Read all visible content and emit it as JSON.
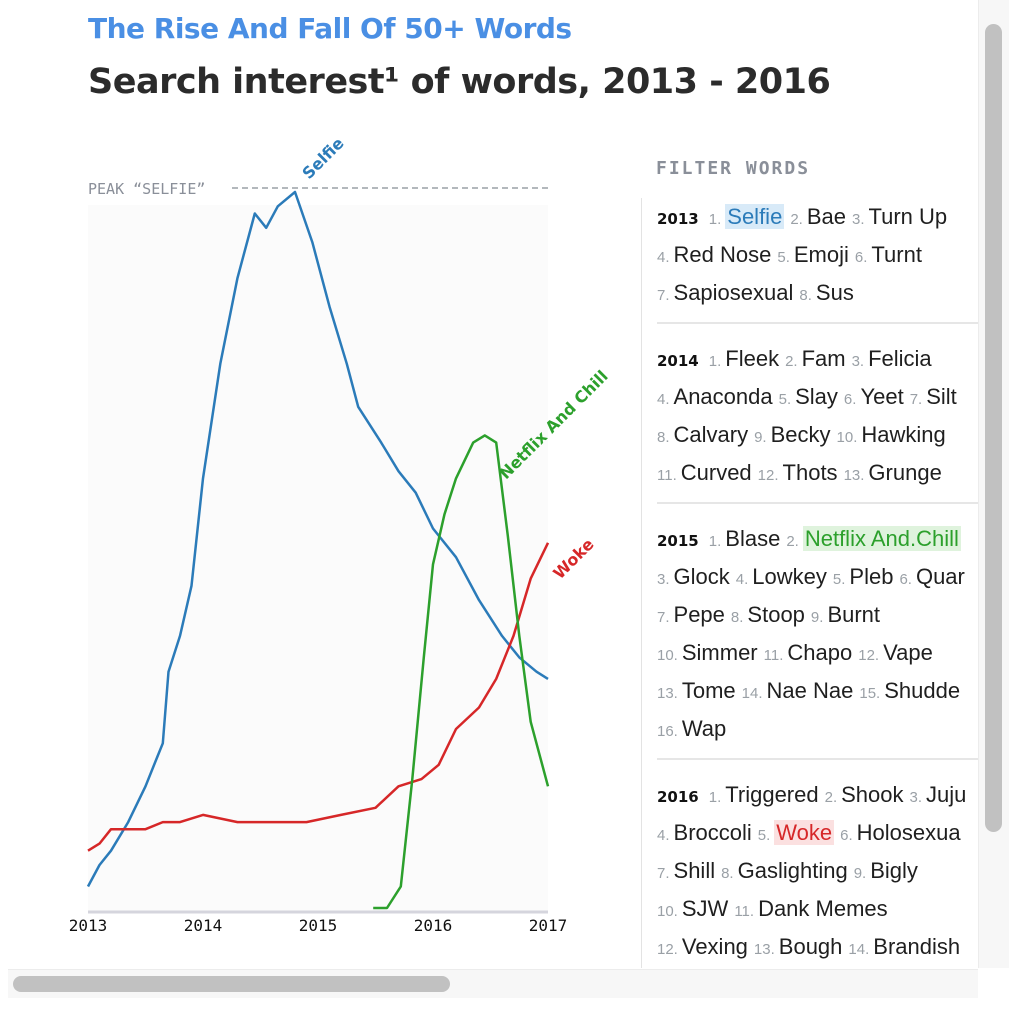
{
  "header": {
    "kicker": "The Rise And Fall Of 50+ Words",
    "title": "Search interest¹ of words, 2013 - 2016"
  },
  "chart_data": {
    "type": "line",
    "title": "Search interest¹ of words, 2013 - 2016",
    "xlabel": "",
    "ylabel": "",
    "xlim": [
      2013,
      2017
    ],
    "ylim": [
      0,
      100
    ],
    "x_ticks": [
      "2013",
      "2014",
      "2015",
      "2016",
      "2017"
    ],
    "annotations": [
      {
        "text": "PEAK “SELFIE”",
        "type": "reference-line",
        "y": 100
      }
    ],
    "series": [
      {
        "name": "Selfie",
        "color": "#2b7bb9",
        "points": [
          [
            2013.0,
            3
          ],
          [
            2013.1,
            6
          ],
          [
            2013.2,
            8
          ],
          [
            2013.35,
            12
          ],
          [
            2013.5,
            17
          ],
          [
            2013.6,
            21
          ],
          [
            2013.65,
            23
          ],
          [
            2013.7,
            33
          ],
          [
            2013.8,
            38
          ],
          [
            2013.9,
            45
          ],
          [
            2014.0,
            60
          ],
          [
            2014.15,
            76
          ],
          [
            2014.3,
            88
          ],
          [
            2014.45,
            97
          ],
          [
            2014.55,
            95
          ],
          [
            2014.65,
            98
          ],
          [
            2014.8,
            100
          ],
          [
            2014.95,
            93
          ],
          [
            2015.1,
            84
          ],
          [
            2015.25,
            76
          ],
          [
            2015.35,
            70
          ],
          [
            2015.55,
            65
          ],
          [
            2015.7,
            61
          ],
          [
            2015.85,
            58
          ],
          [
            2016.0,
            53
          ],
          [
            2016.2,
            49
          ],
          [
            2016.4,
            43
          ],
          [
            2016.6,
            38
          ],
          [
            2016.75,
            35
          ],
          [
            2016.9,
            33
          ],
          [
            2017.0,
            32
          ]
        ]
      },
      {
        "name": "Woke",
        "color": "#d62728",
        "points": [
          [
            2013.0,
            8
          ],
          [
            2013.1,
            9
          ],
          [
            2013.2,
            11
          ],
          [
            2013.35,
            11
          ],
          [
            2013.5,
            11
          ],
          [
            2013.65,
            12
          ],
          [
            2013.8,
            12
          ],
          [
            2014.0,
            13
          ],
          [
            2014.3,
            12
          ],
          [
            2014.6,
            12
          ],
          [
            2014.9,
            12
          ],
          [
            2015.2,
            13
          ],
          [
            2015.5,
            14
          ],
          [
            2015.7,
            17
          ],
          [
            2015.9,
            18
          ],
          [
            2016.05,
            20
          ],
          [
            2016.2,
            25
          ],
          [
            2016.4,
            28
          ],
          [
            2016.55,
            32
          ],
          [
            2016.7,
            38
          ],
          [
            2016.85,
            46
          ],
          [
            2017.0,
            51
          ]
        ]
      },
      {
        "name": "Netflix And Chill",
        "color": "#2ca02c",
        "points": [
          [
            2015.48,
            0
          ],
          [
            2015.6,
            0
          ],
          [
            2015.72,
            3
          ],
          [
            2015.82,
            18
          ],
          [
            2015.92,
            35
          ],
          [
            2016.0,
            48
          ],
          [
            2016.1,
            55
          ],
          [
            2016.2,
            60
          ],
          [
            2016.35,
            65
          ],
          [
            2016.45,
            66
          ],
          [
            2016.55,
            65
          ],
          [
            2016.65,
            52
          ],
          [
            2016.75,
            38
          ],
          [
            2016.85,
            26
          ],
          [
            2017.0,
            17
          ]
        ]
      }
    ],
    "labels": [
      "Selfie",
      "Netflix And Chill",
      "Woke"
    ]
  },
  "filter": {
    "heading": "FILTER WORDS",
    "groups": [
      {
        "year": "2013",
        "lines": [
          [
            {
              "rank": "1.",
              "word": "Selfie",
              "hl": "blue"
            },
            {
              "rank": "2.",
              "word": "Bae"
            },
            {
              "rank": "3.",
              "word": "Turn Up"
            }
          ],
          [
            {
              "rank": "4.",
              "word": "Red Nose"
            },
            {
              "rank": "5.",
              "word": "Emoji"
            },
            {
              "rank": "6.",
              "word": "Turnt"
            }
          ],
          [
            {
              "rank": "7.",
              "word": "Sapiosexual"
            },
            {
              "rank": "8.",
              "word": "Sus"
            }
          ]
        ]
      },
      {
        "year": "2014",
        "lines": [
          [
            {
              "rank": "1.",
              "word": "Fleek"
            },
            {
              "rank": "2.",
              "word": "Fam"
            },
            {
              "rank": "3.",
              "word": "Felicia"
            }
          ],
          [
            {
              "rank": "4.",
              "word": "Anaconda"
            },
            {
              "rank": "5.",
              "word": "Slay"
            },
            {
              "rank": "6.",
              "word": "Yeet"
            },
            {
              "rank": "7.",
              "word": "Silt"
            }
          ],
          [
            {
              "rank": "8.",
              "word": "Calvary"
            },
            {
              "rank": "9.",
              "word": "Becky"
            },
            {
              "rank": "10.",
              "word": "Hawking"
            }
          ],
          [
            {
              "rank": "11.",
              "word": "Curved"
            },
            {
              "rank": "12.",
              "word": "Thots"
            },
            {
              "rank": "13.",
              "word": "Grunge"
            }
          ]
        ]
      },
      {
        "year": "2015",
        "lines": [
          [
            {
              "rank": "1.",
              "word": "Blase"
            },
            {
              "rank": "2.",
              "word": "Netflix And.Chill",
              "hl": "green"
            }
          ],
          [
            {
              "rank": "3.",
              "word": "Glock"
            },
            {
              "rank": "4.",
              "word": "Lowkey"
            },
            {
              "rank": "5.",
              "word": "Pleb"
            },
            {
              "rank": "6.",
              "word": "Quar"
            }
          ],
          [
            {
              "rank": "7.",
              "word": "Pepe"
            },
            {
              "rank": "8.",
              "word": "Stoop"
            },
            {
              "rank": "9.",
              "word": "Burnt"
            }
          ],
          [
            {
              "rank": "10.",
              "word": "Simmer"
            },
            {
              "rank": "11.",
              "word": "Chapo"
            },
            {
              "rank": "12.",
              "word": "Vape"
            }
          ],
          [
            {
              "rank": "13.",
              "word": "Tome"
            },
            {
              "rank": "14.",
              "word": "Nae Nae"
            },
            {
              "rank": "15.",
              "word": "Shudde"
            }
          ],
          [
            {
              "rank": "16.",
              "word": "Wap"
            }
          ]
        ]
      },
      {
        "year": "2016",
        "lines": [
          [
            {
              "rank": "1.",
              "word": "Triggered"
            },
            {
              "rank": "2.",
              "word": "Shook"
            },
            {
              "rank": "3.",
              "word": "Juju"
            }
          ],
          [
            {
              "rank": "4.",
              "word": "Broccoli"
            },
            {
              "rank": "5.",
              "word": "Woke",
              "hl": "red"
            },
            {
              "rank": "6.",
              "word": "Holosexua"
            }
          ],
          [
            {
              "rank": "7.",
              "word": "Shill"
            },
            {
              "rank": "8.",
              "word": "Gaslighting"
            },
            {
              "rank": "9.",
              "word": "Bigly"
            }
          ],
          [
            {
              "rank": "10.",
              "word": "SJW"
            },
            {
              "rank": "11.",
              "word": "Dank Memes"
            }
          ],
          [
            {
              "rank": "12.",
              "word": "Vexing"
            },
            {
              "rank": "13.",
              "word": "Bough"
            },
            {
              "rank": "14.",
              "word": "Brandish"
            }
          ]
        ]
      }
    ]
  }
}
